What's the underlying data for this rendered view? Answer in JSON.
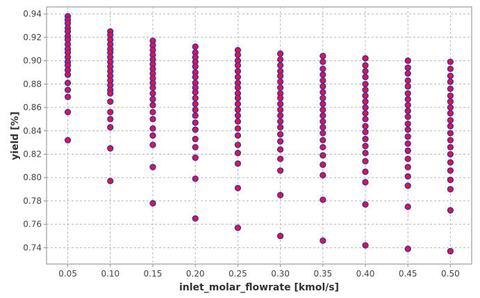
{
  "chart_data": {
    "type": "scatter",
    "xlabel": "inlet_molar_flowrate [kmol/s]",
    "ylabel": "yield [%]",
    "xlim": [
      0.025,
      0.525
    ],
    "ylim": [
      0.726,
      0.946
    ],
    "x_ticks": [
      0.05,
      0.1,
      0.15,
      0.2,
      0.25,
      0.3,
      0.35,
      0.4,
      0.45,
      0.5
    ],
    "x_tick_labels": [
      "0.05",
      "0.10",
      "0.15",
      "0.20",
      "0.25",
      "0.30",
      "0.35",
      "0.40",
      "0.45",
      "0.50"
    ],
    "y_ticks": [
      0.74,
      0.76,
      0.78,
      0.8,
      0.82,
      0.84,
      0.86,
      0.88,
      0.9,
      0.92,
      0.94
    ],
    "y_tick_labels": [
      "0.74",
      "0.76",
      "0.78",
      "0.80",
      "0.82",
      "0.84",
      "0.86",
      "0.88",
      "0.90",
      "0.92",
      "0.94"
    ],
    "grid": true,
    "marker_fill": "#ee1133",
    "marker_edge": "#2233cc",
    "series": [
      {
        "points": [
          [
            0.05,
            0.938
          ],
          [
            0.05,
            0.935
          ],
          [
            0.05,
            0.932
          ],
          [
            0.05,
            0.928
          ],
          [
            0.05,
            0.925
          ],
          [
            0.05,
            0.921
          ],
          [
            0.05,
            0.918
          ],
          [
            0.05,
            0.914
          ],
          [
            0.05,
            0.91
          ],
          [
            0.05,
            0.907
          ],
          [
            0.05,
            0.903
          ],
          [
            0.05,
            0.899
          ],
          [
            0.05,
            0.896
          ],
          [
            0.05,
            0.892
          ],
          [
            0.05,
            0.888
          ],
          [
            0.05,
            0.881
          ],
          [
            0.05,
            0.875
          ],
          [
            0.05,
            0.869
          ],
          [
            0.05,
            0.856
          ],
          [
            0.05,
            0.832
          ],
          [
            0.1,
            0.925
          ],
          [
            0.1,
            0.922
          ],
          [
            0.1,
            0.918
          ],
          [
            0.1,
            0.914
          ],
          [
            0.1,
            0.91
          ],
          [
            0.1,
            0.907
          ],
          [
            0.1,
            0.903
          ],
          [
            0.1,
            0.899
          ],
          [
            0.1,
            0.895
          ],
          [
            0.1,
            0.891
          ],
          [
            0.1,
            0.887
          ],
          [
            0.1,
            0.883
          ],
          [
            0.1,
            0.879
          ],
          [
            0.1,
            0.875
          ],
          [
            0.1,
            0.872
          ],
          [
            0.1,
            0.865
          ],
          [
            0.1,
            0.856
          ],
          [
            0.1,
            0.85
          ],
          [
            0.1,
            0.843
          ],
          [
            0.1,
            0.825
          ],
          [
            0.1,
            0.797
          ],
          [
            0.15,
            0.917
          ],
          [
            0.15,
            0.913
          ],
          [
            0.15,
            0.909
          ],
          [
            0.15,
            0.905
          ],
          [
            0.15,
            0.901
          ],
          [
            0.15,
            0.897
          ],
          [
            0.15,
            0.893
          ],
          [
            0.15,
            0.889
          ],
          [
            0.15,
            0.885
          ],
          [
            0.15,
            0.881
          ],
          [
            0.15,
            0.877
          ],
          [
            0.15,
            0.872
          ],
          [
            0.15,
            0.867
          ],
          [
            0.15,
            0.862
          ],
          [
            0.15,
            0.856
          ],
          [
            0.15,
            0.85
          ],
          [
            0.15,
            0.842
          ],
          [
            0.15,
            0.836
          ],
          [
            0.15,
            0.828
          ],
          [
            0.15,
            0.809
          ],
          [
            0.15,
            0.778
          ],
          [
            0.2,
            0.912
          ],
          [
            0.2,
            0.907
          ],
          [
            0.2,
            0.903
          ],
          [
            0.2,
            0.899
          ],
          [
            0.2,
            0.895
          ],
          [
            0.2,
            0.89
          ],
          [
            0.2,
            0.886
          ],
          [
            0.2,
            0.881
          ],
          [
            0.2,
            0.877
          ],
          [
            0.2,
            0.873
          ],
          [
            0.2,
            0.868
          ],
          [
            0.2,
            0.863
          ],
          [
            0.2,
            0.858
          ],
          [
            0.2,
            0.853
          ],
          [
            0.2,
            0.847
          ],
          [
            0.2,
            0.841
          ],
          [
            0.2,
            0.833
          ],
          [
            0.2,
            0.826
          ],
          [
            0.2,
            0.817
          ],
          [
            0.2,
            0.799
          ],
          [
            0.2,
            0.765
          ],
          [
            0.25,
            0.909
          ],
          [
            0.25,
            0.905
          ],
          [
            0.25,
            0.9
          ],
          [
            0.25,
            0.896
          ],
          [
            0.25,
            0.891
          ],
          [
            0.25,
            0.886
          ],
          [
            0.25,
            0.881
          ],
          [
            0.25,
            0.877
          ],
          [
            0.25,
            0.872
          ],
          [
            0.25,
            0.868
          ],
          [
            0.25,
            0.863
          ],
          [
            0.25,
            0.858
          ],
          [
            0.25,
            0.853
          ],
          [
            0.25,
            0.848
          ],
          [
            0.25,
            0.842
          ],
          [
            0.25,
            0.836
          ],
          [
            0.25,
            0.828
          ],
          [
            0.25,
            0.821
          ],
          [
            0.25,
            0.812
          ],
          [
            0.25,
            0.791
          ],
          [
            0.25,
            0.757
          ],
          [
            0.3,
            0.906
          ],
          [
            0.3,
            0.901
          ],
          [
            0.3,
            0.896
          ],
          [
            0.3,
            0.891
          ],
          [
            0.3,
            0.887
          ],
          [
            0.3,
            0.882
          ],
          [
            0.3,
            0.877
          ],
          [
            0.3,
            0.872
          ],
          [
            0.3,
            0.868
          ],
          [
            0.3,
            0.863
          ],
          [
            0.3,
            0.858
          ],
          [
            0.3,
            0.853
          ],
          [
            0.3,
            0.848
          ],
          [
            0.3,
            0.843
          ],
          [
            0.3,
            0.837
          ],
          [
            0.3,
            0.831
          ],
          [
            0.3,
            0.824
          ],
          [
            0.3,
            0.816
          ],
          [
            0.3,
            0.806
          ],
          [
            0.3,
            0.785
          ],
          [
            0.3,
            0.75
          ],
          [
            0.35,
            0.904
          ],
          [
            0.35,
            0.899
          ],
          [
            0.35,
            0.893
          ],
          [
            0.35,
            0.888
          ],
          [
            0.35,
            0.883
          ],
          [
            0.35,
            0.878
          ],
          [
            0.35,
            0.873
          ],
          [
            0.35,
            0.868
          ],
          [
            0.35,
            0.863
          ],
          [
            0.35,
            0.858
          ],
          [
            0.35,
            0.853
          ],
          [
            0.35,
            0.848
          ],
          [
            0.35,
            0.843
          ],
          [
            0.35,
            0.838
          ],
          [
            0.35,
            0.832
          ],
          [
            0.35,
            0.826
          ],
          [
            0.35,
            0.819
          ],
          [
            0.35,
            0.811
          ],
          [
            0.35,
            0.802
          ],
          [
            0.35,
            0.781
          ],
          [
            0.35,
            0.746
          ],
          [
            0.4,
            0.902
          ],
          [
            0.4,
            0.896
          ],
          [
            0.4,
            0.891
          ],
          [
            0.4,
            0.886
          ],
          [
            0.4,
            0.88
          ],
          [
            0.4,
            0.875
          ],
          [
            0.4,
            0.87
          ],
          [
            0.4,
            0.865
          ],
          [
            0.4,
            0.86
          ],
          [
            0.4,
            0.855
          ],
          [
            0.4,
            0.85
          ],
          [
            0.4,
            0.844
          ],
          [
            0.4,
            0.839
          ],
          [
            0.4,
            0.833
          ],
          [
            0.4,
            0.827
          ],
          [
            0.4,
            0.821
          ],
          [
            0.4,
            0.814
          ],
          [
            0.4,
            0.805
          ],
          [
            0.4,
            0.796
          ],
          [
            0.4,
            0.777
          ],
          [
            0.4,
            0.742
          ],
          [
            0.45,
            0.9
          ],
          [
            0.45,
            0.894
          ],
          [
            0.45,
            0.889
          ],
          [
            0.45,
            0.883
          ],
          [
            0.45,
            0.878
          ],
          [
            0.45,
            0.872
          ],
          [
            0.45,
            0.867
          ],
          [
            0.45,
            0.862
          ],
          [
            0.45,
            0.857
          ],
          [
            0.45,
            0.852
          ],
          [
            0.45,
            0.846
          ],
          [
            0.45,
            0.841
          ],
          [
            0.45,
            0.835
          ],
          [
            0.45,
            0.829
          ],
          [
            0.45,
            0.823
          ],
          [
            0.45,
            0.816
          ],
          [
            0.45,
            0.809
          ],
          [
            0.45,
            0.801
          ],
          [
            0.45,
            0.793
          ],
          [
            0.45,
            0.775
          ],
          [
            0.45,
            0.739
          ],
          [
            0.5,
            0.899
          ],
          [
            0.5,
            0.893
          ],
          [
            0.5,
            0.887
          ],
          [
            0.5,
            0.882
          ],
          [
            0.5,
            0.876
          ],
          [
            0.5,
            0.87
          ],
          [
            0.5,
            0.865
          ],
          [
            0.5,
            0.86
          ],
          [
            0.5,
            0.855
          ],
          [
            0.5,
            0.849
          ],
          [
            0.5,
            0.844
          ],
          [
            0.5,
            0.838
          ],
          [
            0.5,
            0.832
          ],
          [
            0.5,
            0.826
          ],
          [
            0.5,
            0.82
          ],
          [
            0.5,
            0.813
          ],
          [
            0.5,
            0.806
          ],
          [
            0.5,
            0.798
          ],
          [
            0.5,
            0.79
          ],
          [
            0.5,
            0.772
          ],
          [
            0.5,
            0.737
          ]
        ]
      }
    ]
  }
}
